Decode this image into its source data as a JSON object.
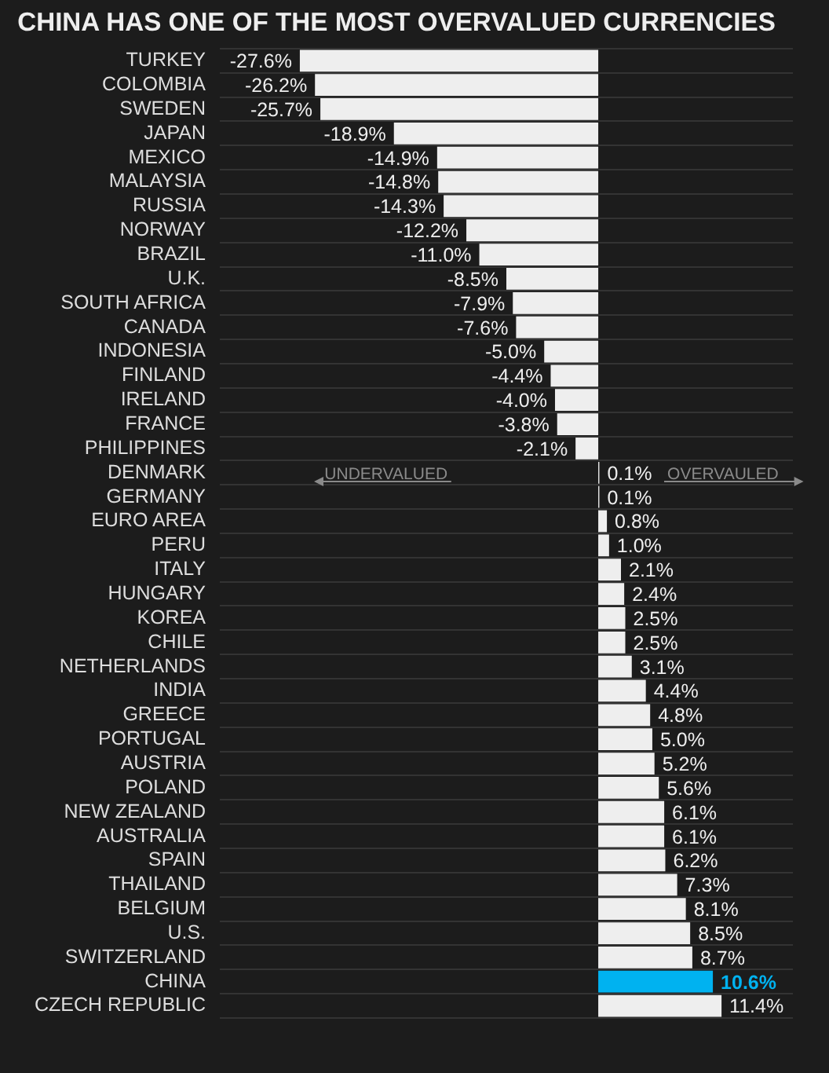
{
  "chart_data": {
    "type": "bar",
    "orientation": "horizontal",
    "title": "CHINA HAS ONE OF THE MOST OVERVALUED CURRENCIES",
    "categories": [
      "TURKEY",
      "COLOMBIA",
      "SWEDEN",
      "JAPAN",
      "MEXICO",
      "MALAYSIA",
      "RUSSIA",
      "NORWAY",
      "BRAZIL",
      "U.K.",
      "SOUTH AFRICA",
      "CANADA",
      "INDONESIA",
      "FINLAND",
      "IRELAND",
      "FRANCE",
      "PHILIPPINES",
      "DENMARK",
      "GERMANY",
      "EURO AREA",
      "PERU",
      "ITALY",
      "HUNGARY",
      "KOREA",
      "CHILE",
      "NETHERLANDS",
      "INDIA",
      "GREECE",
      "PORTUGAL",
      "AUSTRIA",
      "POLAND",
      "NEW ZEALAND",
      "AUSTRALIA",
      "SPAIN",
      "THAILAND",
      "BELGIUM",
      "U.S.",
      "SWITZERLAND",
      "CHINA",
      "CZECH REPUBLIC"
    ],
    "values": [
      -27.6,
      -26.2,
      -25.7,
      -18.9,
      -14.9,
      -14.8,
      -14.3,
      -12.2,
      -11.0,
      -8.5,
      -7.9,
      -7.6,
      -5.0,
      -4.4,
      -4.0,
      -3.8,
      -2.1,
      0.1,
      0.1,
      0.8,
      1.0,
      2.1,
      2.4,
      2.5,
      2.5,
      3.1,
      4.4,
      4.8,
      5.0,
      5.2,
      5.6,
      6.1,
      6.1,
      6.2,
      7.3,
      8.1,
      8.5,
      8.7,
      10.6,
      11.4
    ],
    "value_labels": [
      "-27.6%",
      "-26.2%",
      "-25.7%",
      "-18.9%",
      "-14.9%",
      "-14.8%",
      "-14.3%",
      "-12.2%",
      "-11.0%",
      "-8.5%",
      "-7.9%",
      "-7.6%",
      "-5.0%",
      "-4.4%",
      "-4.0%",
      "-3.8%",
      "-2.1%",
      "0.1%",
      "0.1%",
      "0.8%",
      "1.0%",
      "2.1%",
      "2.4%",
      "2.5%",
      "2.5%",
      "3.1%",
      "4.4%",
      "4.8%",
      "5.0%",
      "5.2%",
      "5.6%",
      "6.1%",
      "6.1%",
      "6.2%",
      "7.3%",
      "8.1%",
      "8.5%",
      "8.7%",
      "10.6%",
      "11.4%"
    ],
    "colors": [
      "#eeeeee",
      "#eeeeee",
      "#eeeeee",
      "#eeeeee",
      "#eeeeee",
      "#eeeeee",
      "#eeeeee",
      "#eeeeee",
      "#eeeeee",
      "#eeeeee",
      "#eeeeee",
      "#eeeeee",
      "#eeeeee",
      "#eeeeee",
      "#eeeeee",
      "#eeeeee",
      "#eeeeee",
      "#eeeeee",
      "#eeeeee",
      "#eeeeee",
      "#eeeeee",
      "#eeeeee",
      "#eeeeee",
      "#eeeeee",
      "#eeeeee",
      "#eeeeee",
      "#eeeeee",
      "#eeeeee",
      "#eeeeee",
      "#eeeeee",
      "#eeeeee",
      "#eeeeee",
      "#eeeeee",
      "#eeeeee",
      "#eeeeee",
      "#eeeeee",
      "#eeeeee",
      "#eeeeee",
      "#00b2f0",
      "#eeeeee"
    ],
    "xlim": [
      -35,
      18
    ],
    "grid": "y",
    "tick_labels": "y",
    "annotations": [
      "UNDERVALUED",
      "OVERVAULED"
    ]
  }
}
